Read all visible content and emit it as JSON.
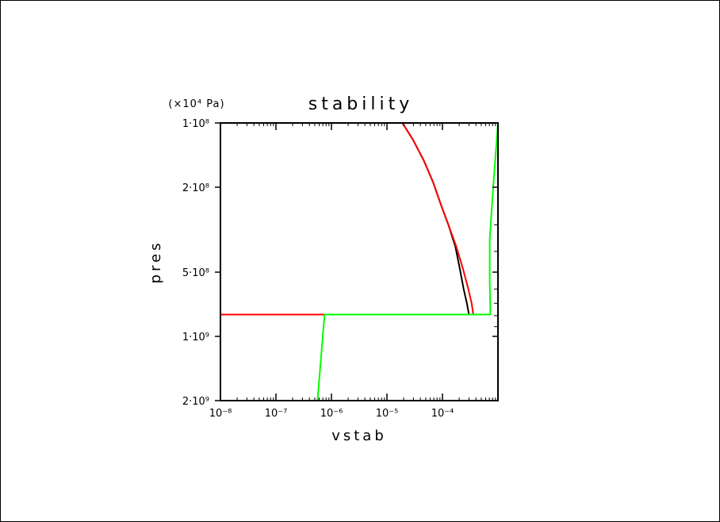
{
  "chart_data": {
    "type": "line",
    "title": "stability",
    "xlabel": "vstab",
    "ylabel": "pres",
    "y_unit_label": "(×10⁴ Pa)",
    "x_scale": "log",
    "y_scale": "log",
    "y_reversed": true,
    "xlim": [
      1e-08,
      0.001
    ],
    "ylim": [
      100000000.0,
      2000000000.0
    ],
    "x_ticks": [
      {
        "value": 1e-08,
        "label": "10⁻⁸"
      },
      {
        "value": 1e-07,
        "label": "10⁻⁷"
      },
      {
        "value": 1e-06,
        "label": "10⁻⁶"
      },
      {
        "value": 1e-05,
        "label": "10⁻⁵"
      },
      {
        "value": 0.0001,
        "label": "10⁻⁴"
      }
    ],
    "y_ticks": [
      {
        "value": 100000000.0,
        "label": "1·10⁸"
      },
      {
        "value": 200000000.0,
        "label": "2·10⁸"
      },
      {
        "value": 500000000.0,
        "label": "5·10⁸"
      },
      {
        "value": 1000000000.0,
        "label": "1·10⁹"
      },
      {
        "value": 2000000000.0,
        "label": "2·10⁹"
      }
    ],
    "y_minor_ticks": [
      300000000.0,
      400000000.0,
      600000000.0,
      700000000.0,
      800000000.0,
      900000000.0
    ],
    "grid": false,
    "series": [
      {
        "color": "#000000",
        "points": [
          [
            1.9e-05,
            100000000.0
          ],
          [
            2.95e-05,
            120000000.0
          ],
          [
            4.62e-05,
            150000000.0
          ],
          [
            6.8e-05,
            190000000.0
          ],
          [
            9.3e-05,
            240000000.0
          ],
          [
            0.000128,
            300000000.0
          ],
          [
            0.000171,
            380000000.0
          ],
          [
            0.000205,
            480000000.0
          ],
          [
            0.000241,
            600000000.0
          ],
          [
            0.000275,
            700000000.0
          ],
          [
            0.0003,
            790000000.0
          ]
        ]
      },
      {
        "color": "#ff0000",
        "points": [
          [
            1.9e-05,
            100000000.0
          ],
          [
            2.95e-05,
            120000000.0
          ],
          [
            4.62e-05,
            150000000.0
          ],
          [
            6.8e-05,
            190000000.0
          ],
          [
            9.3e-05,
            240000000.0
          ],
          [
            0.000128,
            300000000.0
          ],
          [
            0.000178,
            380000000.0
          ],
          [
            0.000233,
            480000000.0
          ],
          [
            0.000292,
            600000000.0
          ],
          [
            0.000335,
            700000000.0
          ],
          [
            0.00036,
            790000000.0
          ],
          [
            1e-08,
            790000000.0
          ],
          [
            1e-08,
            2000000000.0
          ]
        ]
      },
      {
        "color": "#00ff00",
        "points": [
          [
            0.001,
            100000000.0
          ],
          [
            0.00082,
            200000000.0
          ],
          [
            0.00071,
            350000000.0
          ],
          [
            0.00071,
            550000000.0
          ],
          [
            0.00073,
            790000000.0
          ],
          [
            7.5e-07,
            790000000.0
          ],
          [
            5.6e-07,
            2000000000.0
          ]
        ]
      }
    ]
  }
}
